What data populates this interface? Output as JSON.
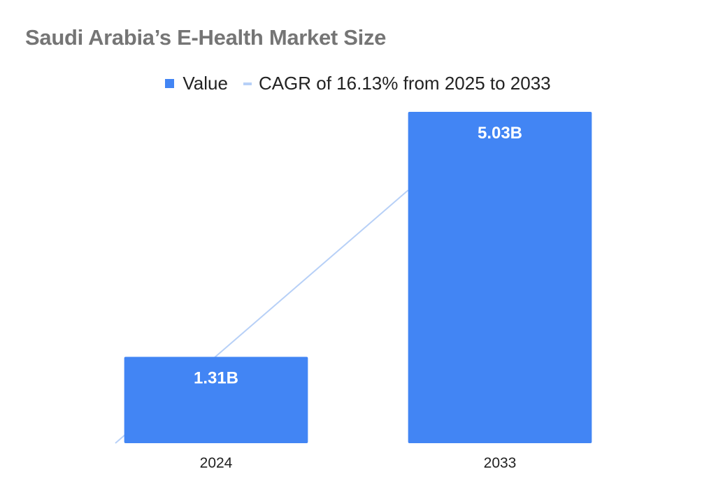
{
  "chart_data": {
    "type": "bar",
    "title": "Saudi Arabia’s E-Health Market Size",
    "categories": [
      "2024",
      "2033"
    ],
    "series": [
      {
        "name": "Value",
        "values": [
          1.31,
          5.03
        ],
        "labels": [
          "1.31B",
          "5.03B"
        ],
        "color": "#4285f4"
      },
      {
        "name": "CAGR of 16.13% from 2025 to 2033",
        "type": "line",
        "values": [
          0,
          3.84
        ],
        "color": "#b7d0f7"
      }
    ],
    "xlabel": "",
    "ylabel": "",
    "ylim": [
      0,
      5.03
    ],
    "grid": false,
    "legend": "top-center"
  }
}
